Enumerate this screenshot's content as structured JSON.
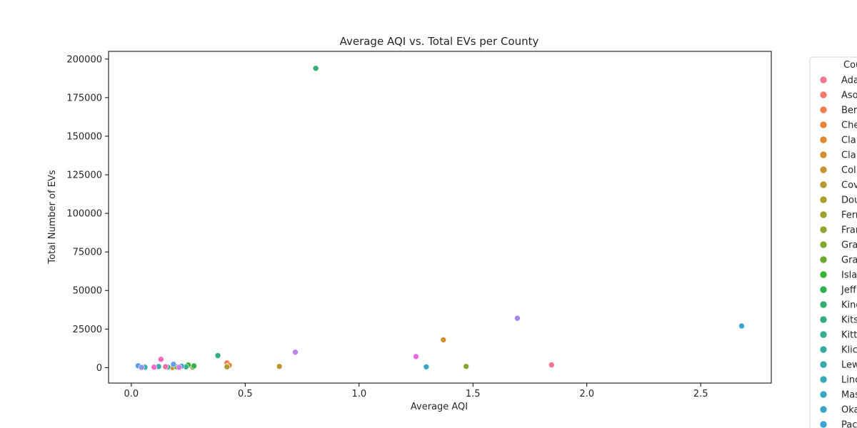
{
  "chart_data": {
    "type": "scatter",
    "title": "Average AQI vs. Total EVs per County",
    "xlabel": "Average AQI",
    "ylabel": "Total Number of EVs",
    "xlim": [
      -0.1,
      2.81
    ],
    "ylim": [
      -10000,
      205000
    ],
    "xticks": [
      0.0,
      0.5,
      1.0,
      1.5,
      2.0,
      2.5
    ],
    "xtick_labels": [
      "0.0",
      "0.5",
      "1.0",
      "1.5",
      "2.0",
      "2.5"
    ],
    "yticks": [
      0,
      25000,
      50000,
      75000,
      100000,
      125000,
      150000,
      175000,
      200000
    ],
    "ytick_labels": [
      "0",
      "25000",
      "50000",
      "75000",
      "100000",
      "125000",
      "150000",
      "175000",
      "200000"
    ],
    "grid": false,
    "legend": {
      "title": "Cou",
      "placement": "outside-right"
    },
    "series": [
      {
        "name": "Ada",
        "color": "#f37694",
        "points": [
          [
            1.845,
            1800
          ]
        ]
      },
      {
        "name": "Aso",
        "color": "#f47a6e",
        "points": [
          [
            0.04,
            350
          ]
        ]
      },
      {
        "name": "Ber",
        "color": "#f27c52",
        "points": [
          [
            0.42,
            3000
          ]
        ]
      },
      {
        "name": "Che",
        "color": "#ea8239",
        "points": [
          [
            0.43,
            1500
          ]
        ]
      },
      {
        "name": "Cla",
        "color": "#df8a2e",
        "points": [
          [
            0.42,
            700
          ]
        ]
      },
      {
        "name": "Cla",
        "color": "#d38f2f",
        "points": [
          [
            1.37,
            18000
          ]
        ]
      },
      {
        "name": "Col",
        "color": "#c5952f",
        "points": [
          [
            0.18,
            100
          ]
        ]
      },
      {
        "name": "Cov",
        "color": "#b9992f",
        "points": [
          [
            0.65,
            800
          ]
        ]
      },
      {
        "name": "Dou",
        "color": "#ad9c2f",
        "points": [
          [
            0.42,
            500
          ]
        ]
      },
      {
        "name": "Ferr",
        "color": "#a19f2f",
        "points": [
          [
            0.27,
            300
          ]
        ]
      },
      {
        "name": "Fran",
        "color": "#93a32f",
        "points": [
          [
            0.06,
            600
          ]
        ]
      },
      {
        "name": "Gra",
        "color": "#83a62f",
        "points": [
          [
            1.47,
            800
          ]
        ]
      },
      {
        "name": "Gra",
        "color": "#6aab2f",
        "points": [
          [
            0.2,
            400
          ]
        ]
      },
      {
        "name": "Isla",
        "color": "#3ab42f",
        "points": [
          [
            0.25,
            1700
          ]
        ]
      },
      {
        "name": "Jeff",
        "color": "#32b04d",
        "points": [
          [
            0.275,
            1100
          ]
        ]
      },
      {
        "name": "King",
        "color": "#33ae6e",
        "points": [
          [
            0.81,
            194000
          ]
        ]
      },
      {
        "name": "Kits",
        "color": "#35ad82",
        "points": [
          [
            0.38,
            7800
          ]
        ]
      },
      {
        "name": "Kitt",
        "color": "#36ac91",
        "points": [
          [
            0.24,
            500
          ]
        ]
      },
      {
        "name": "Klic",
        "color": "#37ab9d",
        "points": [
          [
            0.16,
            300
          ]
        ]
      },
      {
        "name": "Lew",
        "color": "#38aaa8",
        "points": [
          [
            0.12,
            700
          ]
        ]
      },
      {
        "name": "Linc",
        "color": "#39a9b3",
        "points": [
          [
            0.06,
            200
          ]
        ]
      },
      {
        "name": "Mas",
        "color": "#3aa8bd",
        "points": [
          [
            0.22,
            900
          ]
        ]
      },
      {
        "name": "Oka",
        "color": "#3ba6c9",
        "points": [
          [
            1.295,
            500
          ]
        ]
      },
      {
        "name": "Pac",
        "color": "#3ca3d5",
        "points": [
          [
            2.68,
            27000
          ]
        ]
      },
      {
        "name": "",
        "color": "#4da1e4",
        "points": [
          [
            0.03,
            1200
          ]
        ]
      },
      {
        "name": "",
        "color": "#6a9ced",
        "points": [
          [
            0.185,
            2200
          ]
        ]
      },
      {
        "name": "",
        "color": "#8e93ef",
        "points": [
          [
            0.045,
            150
          ]
        ]
      },
      {
        "name": "",
        "color": "#a586ea",
        "points": [
          [
            1.695,
            32000
          ]
        ]
      },
      {
        "name": "",
        "color": "#b882e8",
        "points": [
          [
            0.72,
            10000
          ]
        ]
      },
      {
        "name": "",
        "color": "#cf79e6",
        "points": [
          [
            0.21,
            250
          ]
        ]
      },
      {
        "name": "",
        "color": "#e36ce3",
        "points": [
          [
            1.25,
            7200
          ]
        ]
      },
      {
        "name": "",
        "color": "#ef67d0",
        "points": [
          [
            0.1,
            300
          ]
        ]
      },
      {
        "name": "",
        "color": "#f56bbb",
        "points": [
          [
            0.13,
            5400
          ]
        ]
      },
      {
        "name": "",
        "color": "#f36fa5",
        "points": [
          [
            0.15,
            600
          ]
        ]
      }
    ]
  }
}
